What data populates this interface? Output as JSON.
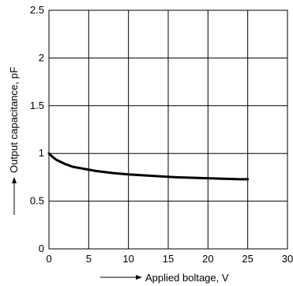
{
  "chart_data": {
    "type": "line",
    "xlabel": "Applied boltage, V",
    "ylabel": "Output capacitance, pF",
    "xlim": [
      0,
      30
    ],
    "ylim": [
      0,
      2.5
    ],
    "grid": true,
    "x_ticks": [
      {
        "value": 0,
        "label": "0"
      },
      {
        "value": 5,
        "label": "5"
      },
      {
        "value": 10,
        "label": "10"
      },
      {
        "value": 15,
        "label": "15"
      },
      {
        "value": 20,
        "label": "20"
      },
      {
        "value": 25,
        "label": "25"
      },
      {
        "value": 30,
        "label": "30"
      }
    ],
    "y_ticks": [
      {
        "value": 0,
        "label": "0"
      },
      {
        "value": 0.5,
        "label": "0.5"
      },
      {
        "value": 1,
        "label": "1"
      },
      {
        "value": 1.5,
        "label": "1.5"
      },
      {
        "value": 2,
        "label": "2"
      },
      {
        "value": 2.5,
        "label": "2.5"
      }
    ],
    "series": [
      {
        "x": [
          0,
          0.5,
          1,
          2,
          3,
          4,
          5,
          6,
          8,
          10,
          12,
          14,
          16,
          18,
          20,
          22,
          24,
          25
        ],
        "y": [
          1.0,
          0.96,
          0.93,
          0.89,
          0.86,
          0.845,
          0.83,
          0.815,
          0.795,
          0.78,
          0.77,
          0.76,
          0.75,
          0.745,
          0.74,
          0.735,
          0.73,
          0.73
        ]
      }
    ]
  }
}
